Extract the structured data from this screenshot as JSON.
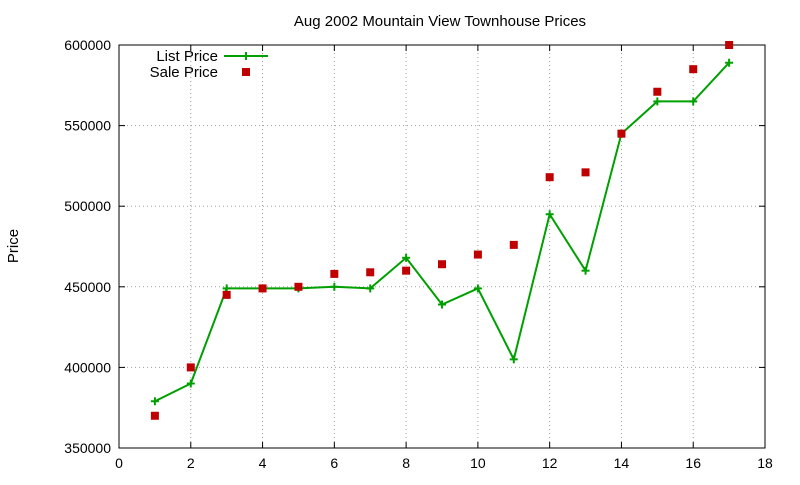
{
  "chart_data": {
    "type": "line",
    "title": "Aug 2002 Mountain View Townhouse Prices",
    "xlabel": "",
    "ylabel": "Price",
    "xlim": [
      0,
      18
    ],
    "ylim": [
      350000,
      600000
    ],
    "x_ticks": [
      0,
      2,
      4,
      6,
      8,
      10,
      12,
      14,
      16,
      18
    ],
    "y_ticks": [
      350000,
      400000,
      450000,
      500000,
      550000,
      600000
    ],
    "x_tick_labels": [
      "0",
      "2",
      "4",
      "6",
      "8",
      "10",
      "12",
      "14",
      "16",
      "18"
    ],
    "y_tick_labels": [
      "350000",
      "400000",
      "450000",
      "500000",
      "550000",
      "600000"
    ],
    "grid": true,
    "legend_position": "top-left",
    "x": [
      1,
      2,
      3,
      4,
      5,
      6,
      7,
      8,
      9,
      10,
      11,
      12,
      13,
      14,
      15,
      16,
      17
    ],
    "series": [
      {
        "name": "List Price",
        "style": "line-plus",
        "color": "#00a000",
        "values": [
          379000,
          390000,
          449000,
          449000,
          449000,
          450000,
          449000,
          468000,
          439000,
          449000,
          405000,
          495000,
          460000,
          545000,
          565000,
          565000,
          589000
        ]
      },
      {
        "name": "Sale Price",
        "style": "square-markers",
        "color": "#c00000",
        "values": [
          370000,
          400000,
          445000,
          449000,
          450000,
          458000,
          459000,
          460000,
          464000,
          470000,
          476000,
          518000,
          521000,
          545000,
          571000,
          585000,
          600000
        ]
      }
    ]
  }
}
